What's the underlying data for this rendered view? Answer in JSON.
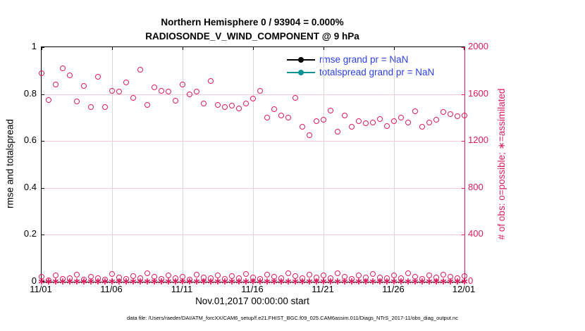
{
  "title": {
    "line1": "Northern Hemisphere 0 / 93904 = 0.000%",
    "line2": "RADIOSONDE_V_WIND_COMPONENT @ 9 hPa"
  },
  "axes": {
    "ylabel_left": "rmse and totalspread",
    "ylabel_right": "# of obs: o=possible; ∗=assimilated",
    "xlabel": "Nov.01,2017 00:00:00 start"
  },
  "legend": {
    "items": [
      {
        "label": "rmse grand pr = NaN",
        "color_key": "rmse_black"
      },
      {
        "label": "totalspread grand pr = NaN",
        "color_key": "totalspread_teal"
      }
    ]
  },
  "footer": {
    "text": "data file: /Users/raeder/DAI/ATM_forcXX/CAM6_setup/f.e21.FHIST_BGC.f09_025.CAM6assim.011/Diags_NTrS_2017-11/obs_diag_output.nc"
  },
  "colors": {
    "accent_pink": "#DC1C5E",
    "grid_pink": "#F5C9D6",
    "grid_gray": "#D8D8D8",
    "legend_text_blue": "#2B3FE0",
    "rmse_black": "#000000",
    "totalspread_teal": "#0F9494"
  },
  "chart_data": {
    "type": "scatter",
    "title": "Northern Hemisphere 0 / 93904 = 0.000%",
    "subtitle": "RADIOSONDE_V_WIND_COMPONENT @ 9 hPa",
    "xlabel": "Nov.01,2017 00:00:00 start",
    "ylabel_left": "rmse and totalspread",
    "ylabel_right": "# of obs: o=possible; ∗=assimilated",
    "x_tick_labels": [
      "11/01",
      "11/06",
      "11/11",
      "11/16",
      "11/21",
      "11/26",
      "12/01"
    ],
    "x_range_days": [
      0,
      30
    ],
    "point_interval_days": 0.5,
    "ylim_left": [
      0,
      1
    ],
    "yticks_left": [
      "0",
      "0.2",
      "0.4",
      "0.6",
      "0.8",
      "1"
    ],
    "yticks_left_values": [
      0,
      0.2,
      0.4,
      0.6,
      0.8,
      1
    ],
    "ylim_right": [
      0,
      2000
    ],
    "yticks_right": [
      "0",
      "400",
      "800",
      "1200",
      "1600",
      "2000"
    ],
    "yticks_right_values": [
      0,
      400,
      800,
      1200,
      1600,
      2000
    ],
    "grid": {
      "vertical": "gray at interior x ticks",
      "horizontal": "pink at right-axis ticks"
    },
    "legend_position": "top-right inside",
    "series": [
      {
        "name": "possible_obs",
        "marker": "o",
        "axis": "right",
        "values": [
          1780,
          1550,
          1680,
          1820,
          1760,
          1540,
          1670,
          1490,
          1750,
          1490,
          1630,
          1620,
          1700,
          1570,
          1810,
          1510,
          1660,
          1630,
          1620,
          1545,
          1680,
          1600,
          1620,
          1520,
          1710,
          1510,
          1490,
          1500,
          1480,
          1520,
          1560,
          1630,
          1400,
          1470,
          1420,
          1400,
          1570,
          1320,
          1250,
          1370,
          1380,
          1460,
          1280,
          1420,
          1320,
          1370,
          1350,
          1360,
          1390,
          1330,
          1370,
          1400,
          1360,
          1455,
          1320,
          1360,
          1380,
          1450,
          1430,
          1410,
          1420
        ]
      },
      {
        "name": "possible_obs_low_band",
        "marker": "o",
        "axis": "right",
        "values": [
          40,
          15,
          55,
          25,
          30,
          60,
          20,
          45,
          30,
          18,
          65,
          35,
          22,
          50,
          28,
          70,
          40,
          25,
          55,
          30,
          45,
          20,
          60,
          35,
          28,
          52,
          22,
          48,
          30,
          65,
          38,
          25,
          58,
          42,
          30,
          75,
          50,
          28,
          62,
          35,
          55,
          30,
          70,
          45,
          22,
          52,
          34,
          64,
          38,
          28,
          56,
          32,
          72,
          44,
          24,
          52,
          36,
          60,
          40,
          30,
          48
        ]
      },
      {
        "name": "assimilated_obs",
        "marker": "*",
        "axis": "right",
        "value_constant": 0,
        "count": 61
      },
      {
        "name": "rmse",
        "axis": "left",
        "note_label": "rmse grand pr = NaN",
        "values_all": "NaN (not plotted)"
      },
      {
        "name": "totalspread",
        "axis": "left",
        "note_label": "totalspread grand pr = NaN",
        "values_all": "NaN (not plotted)"
      }
    ]
  }
}
